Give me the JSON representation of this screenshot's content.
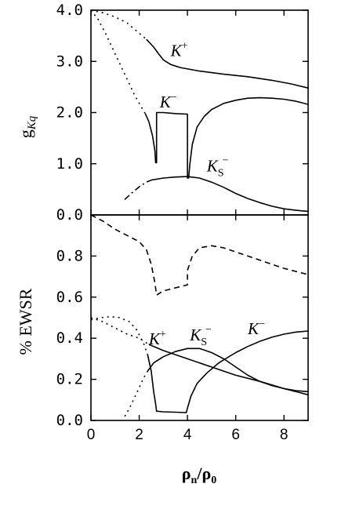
{
  "chart_data": [
    {
      "type": "line",
      "panel": "top",
      "ylabel_main": "g",
      "ylabel_sub": "Kq",
      "xlim": [
        0,
        9
      ],
      "ylim": [
        0,
        4
      ],
      "y_ticks": [
        "0.0",
        "1.0",
        "2.0",
        "3.0",
        "4.0"
      ],
      "y_tick_values": [
        0,
        1,
        2,
        3,
        4
      ],
      "x_tick_values": [
        0,
        2,
        4,
        6,
        8
      ],
      "grid": false,
      "series": [
        {
          "label": "K+",
          "dash": "dot",
          "points": [
            [
              0,
              4.0
            ],
            [
              0.5,
              3.95
            ],
            [
              1.0,
              3.87
            ],
            [
              1.5,
              3.75
            ],
            [
              2.0,
              3.55
            ],
            [
              2.3,
              3.43
            ]
          ]
        },
        {
          "label": "K+",
          "dash": "solid",
          "points": [
            [
              2.3,
              3.43
            ],
            [
              2.6,
              3.28
            ],
            [
              2.8,
              3.15
            ],
            [
              3.0,
              3.03
            ],
            [
              3.3,
              2.94
            ],
            [
              3.7,
              2.88
            ],
            [
              4.5,
              2.81
            ],
            [
              5.5,
              2.75
            ],
            [
              6.5,
              2.7
            ],
            [
              7.5,
              2.63
            ],
            [
              8.3,
              2.56
            ],
            [
              9.0,
              2.48
            ]
          ]
        },
        {
          "label": "K−",
          "dash": "dot",
          "points": [
            [
              0,
              4.0
            ],
            [
              0.3,
              3.82
            ],
            [
              0.6,
              3.55
            ],
            [
              0.9,
              3.25
            ],
            [
              1.2,
              2.95
            ],
            [
              1.5,
              2.65
            ],
            [
              1.8,
              2.35
            ],
            [
              2.1,
              2.1
            ],
            [
              2.25,
              1.98
            ]
          ]
        },
        {
          "label": "K−",
          "dash": "solid",
          "points": [
            [
              2.25,
              1.98
            ],
            [
              2.4,
              1.82
            ],
            [
              2.55,
              1.55
            ],
            [
              2.65,
              1.25
            ],
            [
              2.68,
              1.02
            ],
            [
              2.72,
              1.02
            ],
            [
              2.72,
              2.0
            ],
            [
              3.0,
              2.0
            ],
            [
              3.5,
              1.98
            ],
            [
              4.0,
              1.97
            ],
            [
              4.0,
              0.72
            ],
            [
              4.05,
              0.72
            ],
            [
              4.1,
              1.0
            ],
            [
              4.2,
              1.38
            ],
            [
              4.4,
              1.72
            ],
            [
              4.7,
              1.93
            ],
            [
              5.0,
              2.06
            ],
            [
              5.5,
              2.18
            ],
            [
              6.0,
              2.24
            ],
            [
              6.5,
              2.28
            ],
            [
              7.0,
              2.29
            ],
            [
              7.5,
              2.28
            ],
            [
              8.0,
              2.26
            ],
            [
              8.5,
              2.22
            ],
            [
              9.0,
              2.16
            ]
          ]
        },
        {
          "label": "KS−",
          "dash": "dashdot",
          "points": [
            [
              1.4,
              0.3
            ],
            [
              1.7,
              0.43
            ],
            [
              2.0,
              0.55
            ],
            [
              2.3,
              0.64
            ],
            [
              2.5,
              0.68
            ]
          ]
        },
        {
          "label": "KS−",
          "dash": "solid",
          "points": [
            [
              2.5,
              0.68
            ],
            [
              3.0,
              0.72
            ],
            [
              3.5,
              0.74
            ],
            [
              4.0,
              0.75
            ],
            [
              4.5,
              0.72
            ],
            [
              5.0,
              0.64
            ],
            [
              5.5,
              0.54
            ],
            [
              6.0,
              0.42
            ],
            [
              6.5,
              0.32
            ],
            [
              7.0,
              0.24
            ],
            [
              7.5,
              0.17
            ],
            [
              8.0,
              0.12
            ],
            [
              8.5,
              0.09
            ],
            [
              9.0,
              0.07
            ]
          ]
        }
      ],
      "annotations": [
        {
          "base": "K",
          "sup": "+",
          "sub": "",
          "at": [
            3.3,
            3.1
          ]
        },
        {
          "base": "K",
          "sup": "−",
          "sub": "",
          "at": [
            2.85,
            2.1
          ]
        },
        {
          "base": "K",
          "sup": "−",
          "sub": "S",
          "at": [
            4.8,
            0.85
          ]
        }
      ]
    },
    {
      "type": "line",
      "panel": "bottom",
      "ylabel": "% EWSR",
      "xlabel_main": "ρ",
      "xlabel_sub_n": "n",
      "xlabel_slash": "/",
      "xlabel_sub_0": "0",
      "xlim": [
        0,
        9
      ],
      "ylim": [
        0,
        1.0
      ],
      "y_ticks": [
        "0.0",
        "0.2",
        "0.4",
        "0.6",
        "0.8"
      ],
      "y_tick_values": [
        0,
        0.2,
        0.4,
        0.6,
        0.8
      ],
      "x_ticks": [
        "0",
        "2",
        "4",
        "6",
        "8"
      ],
      "x_tick_values": [
        0,
        2,
        4,
        6,
        8
      ],
      "grid": false,
      "series": [
        {
          "label": "dashed",
          "dash": "dash",
          "points": [
            [
              0,
              1.0
            ],
            [
              0.5,
              0.97
            ],
            [
              1.0,
              0.93
            ],
            [
              1.5,
              0.9
            ],
            [
              2.0,
              0.87
            ],
            [
              2.3,
              0.83
            ],
            [
              2.5,
              0.76
            ],
            [
              2.65,
              0.67
            ],
            [
              2.72,
              0.61
            ],
            [
              3.0,
              0.63
            ],
            [
              3.5,
              0.645
            ],
            [
              4.0,
              0.66
            ],
            [
              4.0,
              0.73
            ],
            [
              4.2,
              0.8
            ],
            [
              4.5,
              0.84
            ],
            [
              5.0,
              0.85
            ],
            [
              5.5,
              0.84
            ],
            [
              6.0,
              0.82
            ],
            [
              6.5,
              0.8
            ],
            [
              7.0,
              0.78
            ],
            [
              7.5,
              0.76
            ],
            [
              8.0,
              0.74
            ],
            [
              8.5,
              0.725
            ],
            [
              9.0,
              0.71
            ]
          ]
        },
        {
          "label": "K+",
          "dash": "dot",
          "points": [
            [
              0,
              0.5
            ],
            [
              0.5,
              0.48
            ],
            [
              1.0,
              0.45
            ],
            [
              1.5,
              0.42
            ],
            [
              2.0,
              0.4
            ],
            [
              2.4,
              0.37
            ]
          ]
        },
        {
          "label": "K+",
          "dash": "solid",
          "points": [
            [
              2.4,
              0.37
            ],
            [
              3.0,
              0.34
            ],
            [
              4.0,
              0.3
            ],
            [
              5.0,
              0.26
            ],
            [
              6.0,
              0.22
            ],
            [
              7.0,
              0.19
            ],
            [
              8.0,
              0.155
            ],
            [
              9.0,
              0.125
            ]
          ]
        },
        {
          "label": "K−",
          "dash": "dot",
          "points": [
            [
              0,
              0.49
            ],
            [
              0.4,
              0.5
            ],
            [
              0.8,
              0.505
            ],
            [
              1.2,
              0.5
            ],
            [
              1.6,
              0.48
            ],
            [
              1.9,
              0.44
            ],
            [
              2.2,
              0.37
            ],
            [
              2.35,
              0.32
            ]
          ]
        },
        {
          "label": "K−",
          "dash": "solid",
          "points": [
            [
              2.35,
              0.32
            ],
            [
              2.5,
              0.24
            ],
            [
              2.6,
              0.14
            ],
            [
              2.68,
              0.08
            ],
            [
              2.72,
              0.045
            ],
            [
              3.0,
              0.042
            ],
            [
              3.5,
              0.04
            ],
            [
              3.95,
              0.038
            ],
            [
              4.0,
              0.06
            ],
            [
              4.15,
              0.12
            ],
            [
              4.4,
              0.18
            ],
            [
              4.8,
              0.23
            ],
            [
              5.3,
              0.28
            ],
            [
              6.0,
              0.33
            ],
            [
              6.5,
              0.36
            ],
            [
              7.0,
              0.385
            ],
            [
              7.5,
              0.405
            ],
            [
              8.0,
              0.42
            ],
            [
              8.5,
              0.43
            ],
            [
              9.0,
              0.435
            ]
          ]
        },
        {
          "label": "KS−",
          "dash": "dot",
          "points": [
            [
              1.4,
              0.02
            ],
            [
              1.6,
              0.06
            ],
            [
              1.8,
              0.11
            ],
            [
              2.0,
              0.16
            ],
            [
              2.2,
              0.21
            ],
            [
              2.35,
              0.24
            ]
          ]
        },
        {
          "label": "KS−",
          "dash": "solid",
          "points": [
            [
              2.35,
              0.24
            ],
            [
              2.6,
              0.28
            ],
            [
              3.0,
              0.31
            ],
            [
              3.5,
              0.335
            ],
            [
              4.0,
              0.35
            ],
            [
              4.5,
              0.35
            ],
            [
              5.0,
              0.33
            ],
            [
              5.5,
              0.3
            ],
            [
              6.0,
              0.26
            ],
            [
              6.5,
              0.22
            ],
            [
              7.0,
              0.19
            ],
            [
              7.5,
              0.17
            ],
            [
              8.0,
              0.155
            ],
            [
              8.5,
              0.145
            ],
            [
              9.0,
              0.14
            ]
          ]
        }
      ],
      "annotations": [
        {
          "base": "K",
          "sup": "+",
          "sub": "",
          "at": [
            2.4,
            0.37
          ]
        },
        {
          "base": "K",
          "sup": "−",
          "sub": "S",
          "at": [
            4.1,
            0.39
          ]
        },
        {
          "base": "K",
          "sup": "−",
          "sub": "",
          "at": [
            6.5,
            0.42
          ]
        }
      ]
    }
  ]
}
